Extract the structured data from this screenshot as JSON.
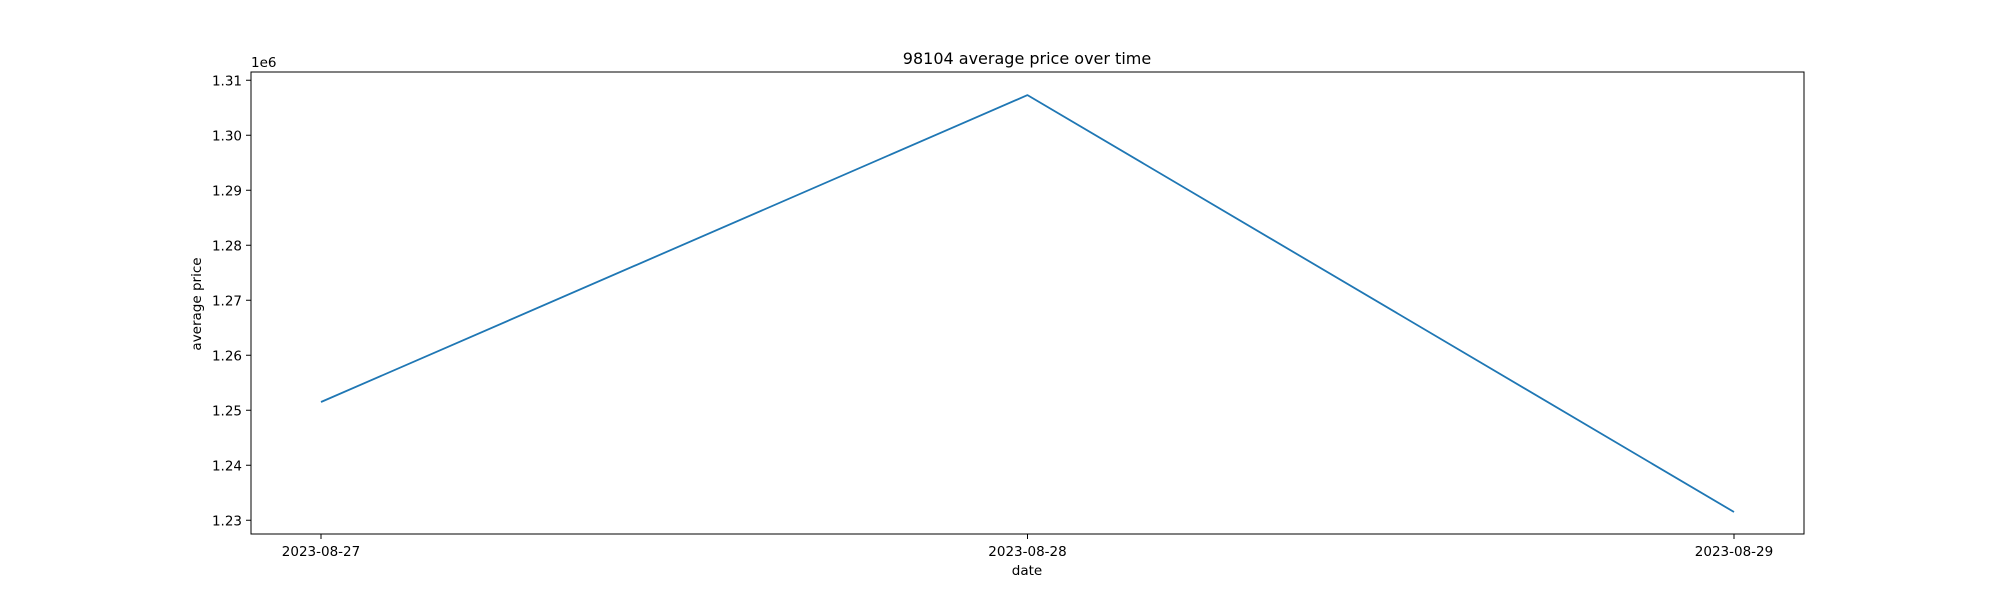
{
  "chart_data": {
    "type": "line",
    "title": "98104 average price over time",
    "xlabel": "date",
    "ylabel": "average price",
    "y_offset_label": "1e6",
    "x_categories": [
      "2023-08-27",
      "2023-08-28",
      "2023-08-29"
    ],
    "x_tick_labels": [
      "2023-08-27",
      "2023-08-28",
      "2023-08-29"
    ],
    "y_ticks": [
      1.23,
      1.24,
      1.25,
      1.26,
      1.27,
      1.28,
      1.29,
      1.3,
      1.31
    ],
    "y_tick_labels": [
      "1.23",
      "1.24",
      "1.25",
      "1.26",
      "1.27",
      "1.28",
      "1.29",
      "1.30",
      "1.31"
    ],
    "ylim": [
      1.2275,
      1.3115
    ],
    "series": [
      {
        "values": [
          1.2515,
          1.3073,
          1.2315
        ],
        "color": "#1f77b4"
      }
    ],
    "grid": false,
    "legend": "none"
  }
}
